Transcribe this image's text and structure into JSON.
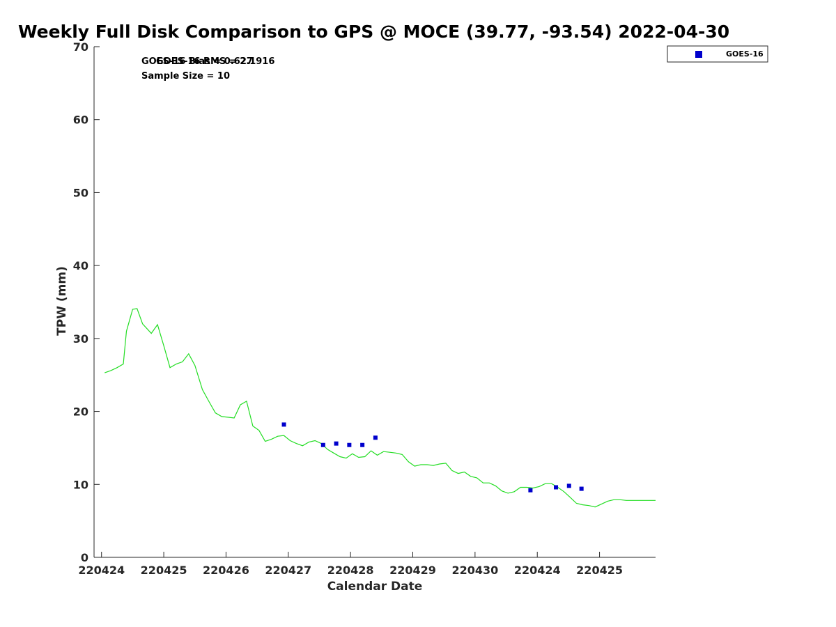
{
  "chart_data": {
    "type": "scatter",
    "title": "Weekly Full Disk Comparison to GPS @ MOCE (39.77, -93.54) 2022-04-30",
    "xlabel": "Calendar Date",
    "ylabel": "TPW (mm)",
    "ylim": [
      0,
      70
    ],
    "xlim": [
      -0.12,
      8.9
    ],
    "yticks": [
      0,
      10,
      20,
      30,
      40,
      50,
      60,
      70
    ],
    "xticks": [
      {
        "pos": 0,
        "label": "220424"
      },
      {
        "pos": 1,
        "label": "220425"
      },
      {
        "pos": 2,
        "label": "220426"
      },
      {
        "pos": 3,
        "label": "220427"
      },
      {
        "pos": 4,
        "label": "220428"
      },
      {
        "pos": 5,
        "label": "220429"
      },
      {
        "pos": 6,
        "label": "220430"
      },
      {
        "pos": 7,
        "label": "220424"
      },
      {
        "pos": 8,
        "label": "220425"
      }
    ],
    "annotations": {
      "bias": "GOES-16 Bias = 0.627",
      "rms": "GOES-16 RMS = 2.1916",
      "sample": "Sample Size = 10"
    },
    "legend": {
      "position": "top-right",
      "label": "GOES-16"
    },
    "series": [
      {
        "name": "GPS",
        "kind": "line",
        "color": "#22dd22",
        "x": [
          0.05,
          0.15,
          0.25,
          0.35,
          0.4,
          0.5,
          0.57,
          0.66,
          0.8,
          0.9,
          1.0,
          1.1,
          1.2,
          1.3,
          1.4,
          1.5,
          1.62,
          1.73,
          1.83,
          1.93,
          2.03,
          2.13,
          2.23,
          2.33,
          2.43,
          2.53,
          2.63,
          2.73,
          2.83,
          2.93,
          3.03,
          3.13,
          3.23,
          3.33,
          3.43,
          3.53,
          3.63,
          3.73,
          3.83,
          3.93,
          4.03,
          4.13,
          4.23,
          4.33,
          4.43,
          4.53,
          4.63,
          4.73,
          4.83,
          4.93,
          5.03,
          5.13,
          5.23,
          5.33,
          5.43,
          5.53,
          5.63,
          5.73,
          5.83,
          5.93,
          6.03,
          6.13,
          6.23,
          6.33,
          6.43,
          6.53,
          6.63,
          6.73,
          6.83,
          6.93,
          7.03,
          7.13,
          7.23,
          7.33,
          7.43,
          7.53,
          7.63,
          7.73,
          7.83,
          7.93,
          8.03,
          8.13,
          8.23,
          8.33,
          8.43,
          8.53,
          8.63,
          8.73,
          8.83,
          8.9
        ],
        "y": [
          25.3,
          25.6,
          26.0,
          26.5,
          31.0,
          34.0,
          34.1,
          32.0,
          30.7,
          31.9,
          29.0,
          26.0,
          26.5,
          26.8,
          27.9,
          26.3,
          23.0,
          21.3,
          19.8,
          19.3,
          19.2,
          19.1,
          20.9,
          21.4,
          18.0,
          17.4,
          15.9,
          16.2,
          16.6,
          16.7,
          16.0,
          15.6,
          15.3,
          15.8,
          16.0,
          15.6,
          14.8,
          14.3,
          13.8,
          13.6,
          14.2,
          13.7,
          13.8,
          14.6,
          14.0,
          14.5,
          14.4,
          14.3,
          14.1,
          13.1,
          12.5,
          12.7,
          12.7,
          12.6,
          12.8,
          12.9,
          11.9,
          11.5,
          11.7,
          11.1,
          10.9,
          10.2,
          10.2,
          9.8,
          9.1,
          8.8,
          9.0,
          9.6,
          9.6,
          9.5,
          9.7,
          10.1,
          10.1,
          9.6,
          9.0,
          8.2,
          7.4,
          7.2,
          7.1,
          6.9,
          7.3,
          7.7,
          7.9,
          7.9,
          7.8,
          7.8,
          7.8,
          7.8,
          7.8,
          7.8
        ]
      },
      {
        "name": "GOES-16",
        "kind": "marker",
        "color": "#0000cc",
        "x": [
          2.93,
          3.56,
          3.77,
          3.98,
          4.19,
          4.4,
          6.89,
          7.3,
          7.51,
          7.71
        ],
        "y": [
          18.2,
          15.4,
          15.6,
          15.4,
          15.4,
          16.4,
          9.2,
          9.6,
          9.8,
          9.4
        ]
      }
    ]
  }
}
